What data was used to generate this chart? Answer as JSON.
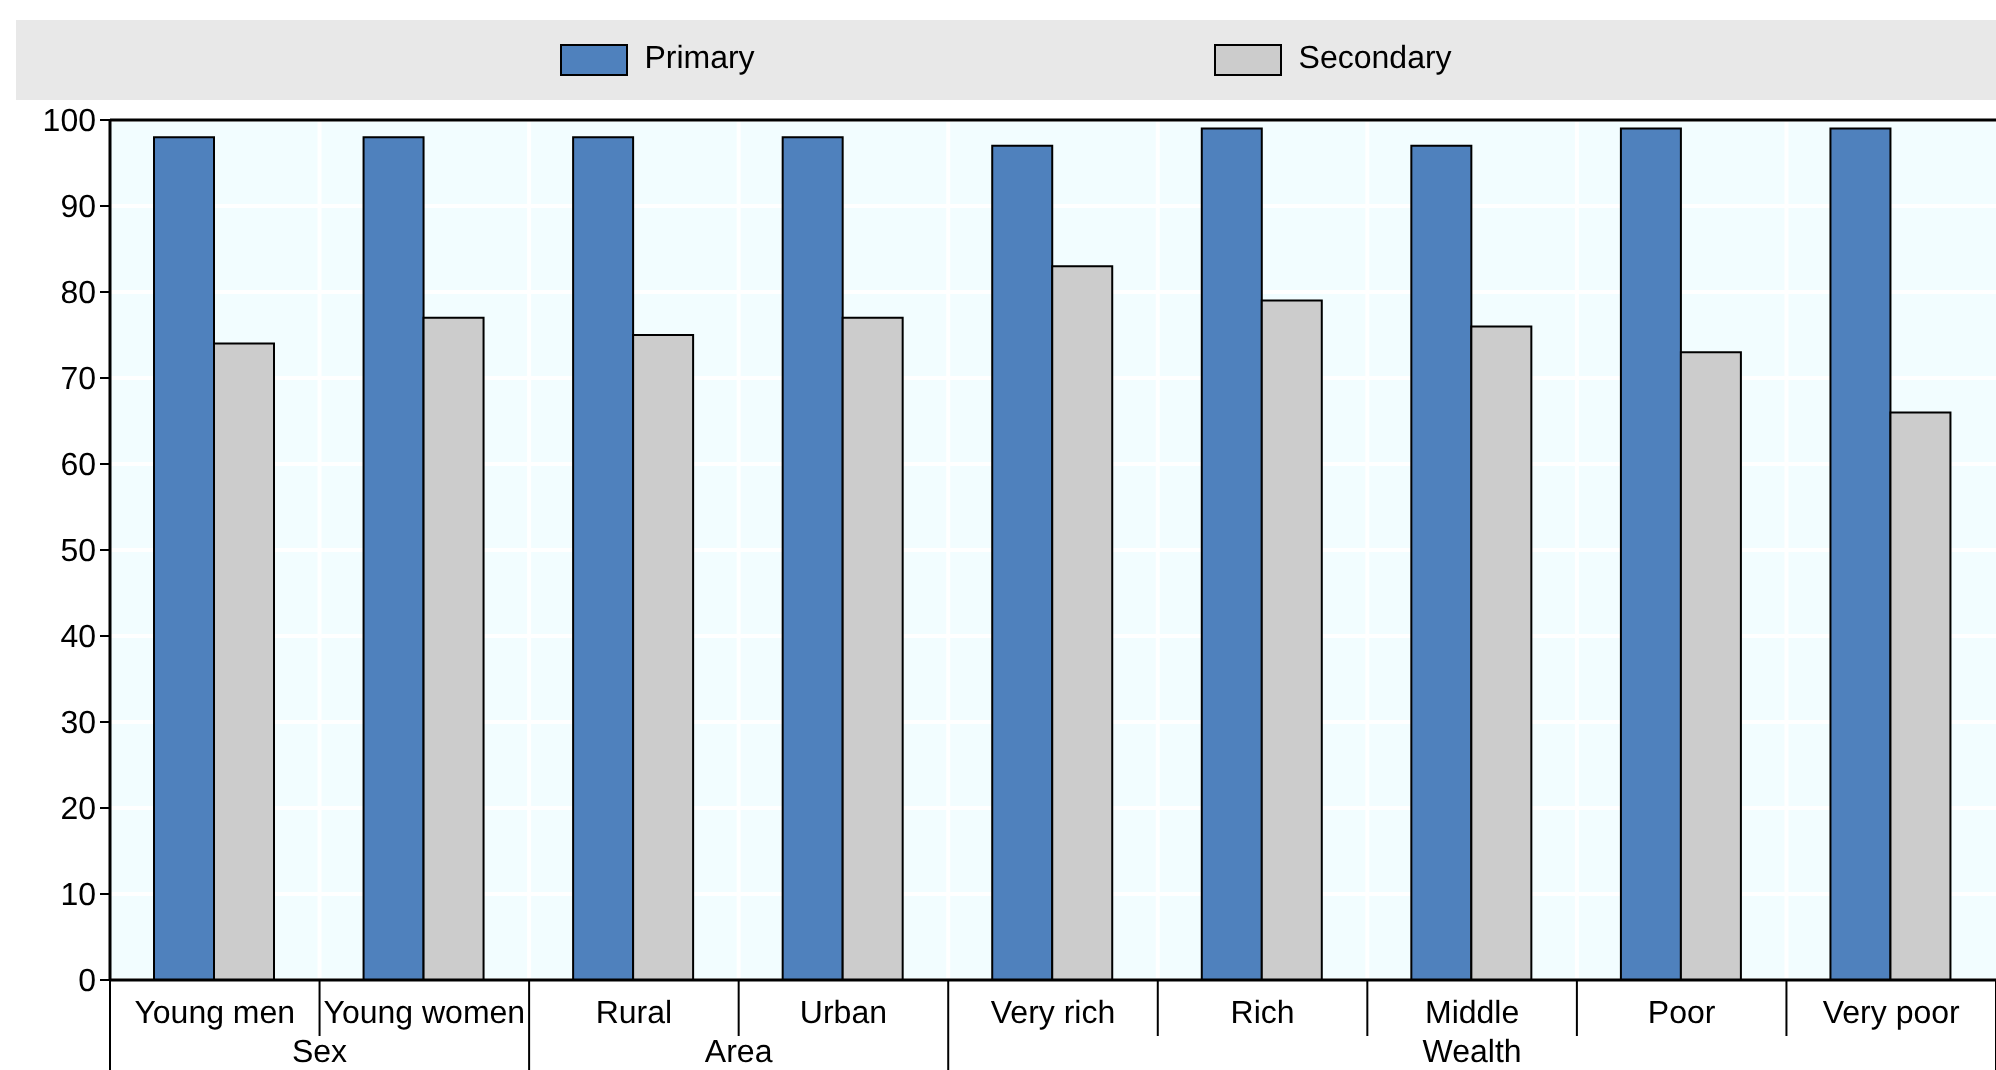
{
  "chart_data": {
    "type": "bar",
    "categories": [
      "Young men",
      "Young women",
      "Rural",
      "Urban",
      "Very rich",
      "Rich",
      "Middle",
      "Poor",
      "Very poor"
    ],
    "series": [
      {
        "name": "Primary",
        "color": "#4f81bd",
        "values": [
          98,
          98,
          98,
          98,
          97,
          99,
          97,
          99,
          99
        ]
      },
      {
        "name": "Secondary",
        "color": "#cccccc",
        "values": [
          74,
          77,
          75,
          77,
          83,
          79,
          76,
          73,
          66
        ]
      }
    ],
    "ylim": [
      0,
      100
    ],
    "yticks": [
      0,
      10,
      20,
      30,
      40,
      50,
      60,
      70,
      80,
      90,
      100
    ],
    "grid": true,
    "legend": "top",
    "annotations": [
      "Sex",
      "Area",
      "Wealth"
    ]
  }
}
